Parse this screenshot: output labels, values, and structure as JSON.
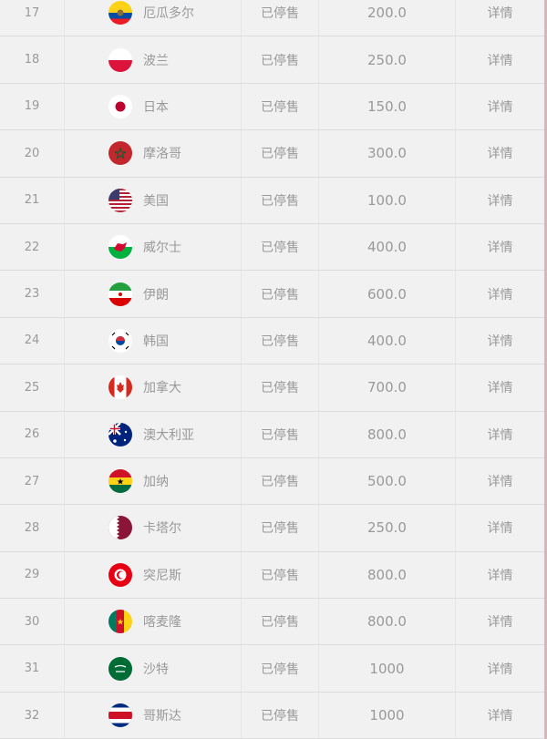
{
  "rows": [
    {
      "no": "17",
      "name": "厄瓜多尔",
      "status": "已停售",
      "value": "200.0",
      "action": "详情",
      "flag": "ecuador"
    },
    {
      "no": "18",
      "name": "波兰",
      "status": "已停售",
      "value": "250.0",
      "action": "详情",
      "flag": "poland"
    },
    {
      "no": "19",
      "name": "日本",
      "status": "已停售",
      "value": "150.0",
      "action": "详情",
      "flag": "japan"
    },
    {
      "no": "20",
      "name": "摩洛哥",
      "status": "已停售",
      "value": "300.0",
      "action": "详情",
      "flag": "morocco"
    },
    {
      "no": "21",
      "name": "美国",
      "status": "已停售",
      "value": "100.0",
      "action": "详情",
      "flag": "usa"
    },
    {
      "no": "22",
      "name": "威尔士",
      "status": "已停售",
      "value": "400.0",
      "action": "详情",
      "flag": "wales"
    },
    {
      "no": "23",
      "name": "伊朗",
      "status": "已停售",
      "value": "600.0",
      "action": "详情",
      "flag": "iran"
    },
    {
      "no": "24",
      "name": "韩国",
      "status": "已停售",
      "value": "400.0",
      "action": "详情",
      "flag": "korea"
    },
    {
      "no": "25",
      "name": "加拿大",
      "status": "已停售",
      "value": "700.0",
      "action": "详情",
      "flag": "canada"
    },
    {
      "no": "26",
      "name": "澳大利亚",
      "status": "已停售",
      "value": "800.0",
      "action": "详情",
      "flag": "australia"
    },
    {
      "no": "27",
      "name": "加纳",
      "status": "已停售",
      "value": "500.0",
      "action": "详情",
      "flag": "ghana"
    },
    {
      "no": "28",
      "name": "卡塔尔",
      "status": "已停售",
      "value": "250.0",
      "action": "详情",
      "flag": "qatar"
    },
    {
      "no": "29",
      "name": "突尼斯",
      "status": "已停售",
      "value": "800.0",
      "action": "详情",
      "flag": "tunisia"
    },
    {
      "no": "30",
      "name": "喀麦隆",
      "status": "已停售",
      "value": "800.0",
      "action": "详情",
      "flag": "cameroon"
    },
    {
      "no": "31",
      "name": "沙特",
      "status": "已停售",
      "value": "1000",
      "action": "详情",
      "flag": "saudi"
    },
    {
      "no": "32",
      "name": "哥斯达",
      "status": "已停售",
      "value": "1000",
      "action": "详情",
      "flag": "costa-rica"
    }
  ]
}
